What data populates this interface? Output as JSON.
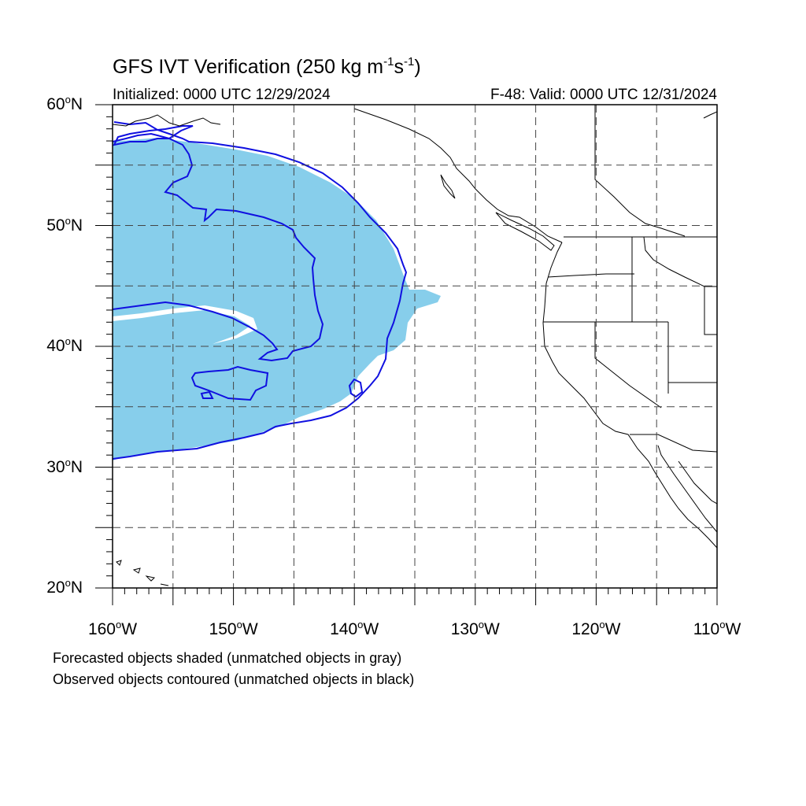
{
  "title": {
    "main": "GFS IVT Verification (250 kg m",
    "exp1": "-1",
    "mid": "s",
    "exp2": "-1",
    "close": ")"
  },
  "initialized": "Initialized: 0000 UTC 12/29/2024",
  "valid": "F-48: Valid: 0000 UTC 12/31/2024",
  "latitude_labels": [
    {
      "value": 60,
      "text": "60",
      "hem": "N"
    },
    {
      "value": 50,
      "text": "50",
      "hem": "N"
    },
    {
      "value": 40,
      "text": "40",
      "hem": "N"
    },
    {
      "value": 30,
      "text": "30",
      "hem": "N"
    },
    {
      "value": 20,
      "text": "20",
      "hem": "N"
    }
  ],
  "longitude_labels": [
    {
      "value": -160,
      "text": "160",
      "hem": "W"
    },
    {
      "value": -150,
      "text": "150",
      "hem": "W"
    },
    {
      "value": -140,
      "text": "140",
      "hem": "W"
    },
    {
      "value": -130,
      "text": "130",
      "hem": "W"
    },
    {
      "value": -120,
      "text": "120",
      "hem": "W"
    },
    {
      "value": -110,
      "text": "110",
      "hem": "W"
    }
  ],
  "footer": {
    "line1": "Forecasted objects shaded (unmatched objects in gray)",
    "line2": "Observed objects contoured (unmatched objects in black)"
  },
  "colors": {
    "forecast_fill": "#87ceeb",
    "observed_contour": "#1010e0",
    "coastline": "#000000",
    "grid": "#444444"
  },
  "map": {
    "lon_range": [
      -160,
      -110
    ],
    "lat_range": [
      20,
      60
    ],
    "grid_lines": "dashed every 5 degrees"
  }
}
